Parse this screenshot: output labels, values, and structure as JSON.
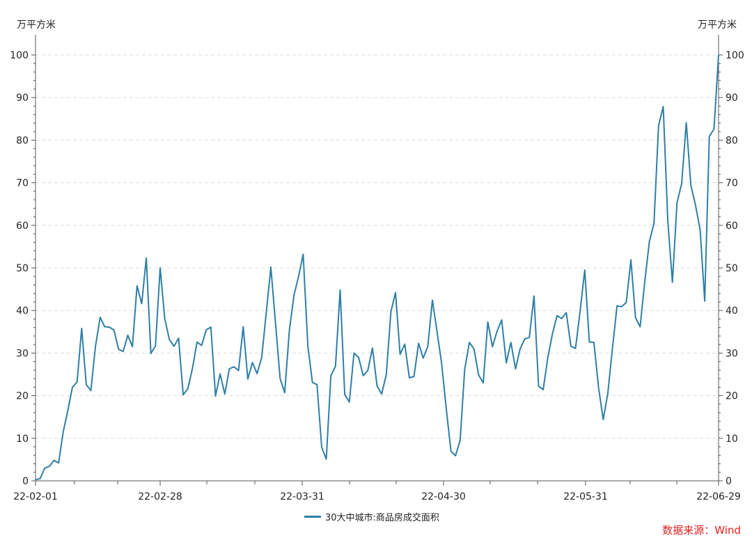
{
  "chart_data": {
    "type": "line",
    "unit_left": "万平方米",
    "unit_right": "万平方米",
    "ylim": [
      0,
      100
    ],
    "yticks": [
      0,
      10,
      20,
      30,
      40,
      50,
      60,
      70,
      80,
      90,
      100
    ],
    "grid": true,
    "x_tick_labels": [
      "22-02-01",
      "22-02-28",
      "22-03-31",
      "22-04-30",
      "22-05-31",
      "22-06-29"
    ],
    "series": [
      {
        "name": "30大中城市:商品房成交面积",
        "color": "#2e7ea6",
        "values": [
          0.3,
          0.5,
          3.0,
          3.4,
          4.8,
          4.2,
          11.5,
          16.5,
          22.0,
          23.2,
          35.8,
          22.6,
          21.2,
          31.7,
          38.4,
          36.2,
          36.1,
          35.4,
          30.9,
          30.4,
          34.2,
          31.5,
          45.8,
          41.6,
          52.3,
          29.9,
          31.7,
          50.0,
          38.1,
          33.2,
          31.6,
          33.5,
          20.2,
          21.6,
          26.4,
          32.6,
          31.8,
          35.5,
          36.1,
          19.9,
          25.1,
          20.4,
          26.3,
          26.8,
          25.9,
          36.2,
          23.9,
          27.8,
          25.2,
          28.9,
          39.5,
          50.2,
          37.0,
          24.0,
          20.7,
          35.4,
          43.6,
          48.0,
          53.2,
          31.7,
          23.1,
          22.6,
          7.9,
          5.1,
          24.7,
          26.9,
          44.8,
          20.3,
          18.5,
          30.0,
          29.0,
          24.7,
          25.9,
          31.2,
          22.3,
          20.4,
          25.0,
          39.7,
          44.2,
          29.7,
          32.1,
          24.2,
          24.5,
          32.3,
          28.8,
          31.6,
          42.4,
          35.0,
          27.5,
          17.0,
          7.0,
          5.9,
          9.5,
          26.2,
          32.5,
          31.0,
          24.9,
          23.0,
          37.3,
          31.5,
          35.1,
          37.8,
          27.7,
          32.5,
          26.3,
          31.0,
          33.3,
          33.7,
          43.4,
          22.2,
          21.4,
          29.0,
          34.5,
          38.8,
          38.1,
          39.5,
          31.6,
          31.1,
          39.8,
          49.5,
          32.6,
          32.5,
          21.8,
          14.4,
          20.5,
          31.0,
          41.1,
          40.9,
          41.9,
          51.9,
          38.3,
          36.2,
          46.6,
          56.2,
          60.4,
          83.4,
          87.9,
          61.0,
          46.6,
          65.3,
          69.8,
          84.1,
          69.4,
          64.7,
          59.0,
          42.2,
          80.9,
          82.6,
          100.0
        ]
      }
    ]
  },
  "source_label": "数据来源：Wind"
}
